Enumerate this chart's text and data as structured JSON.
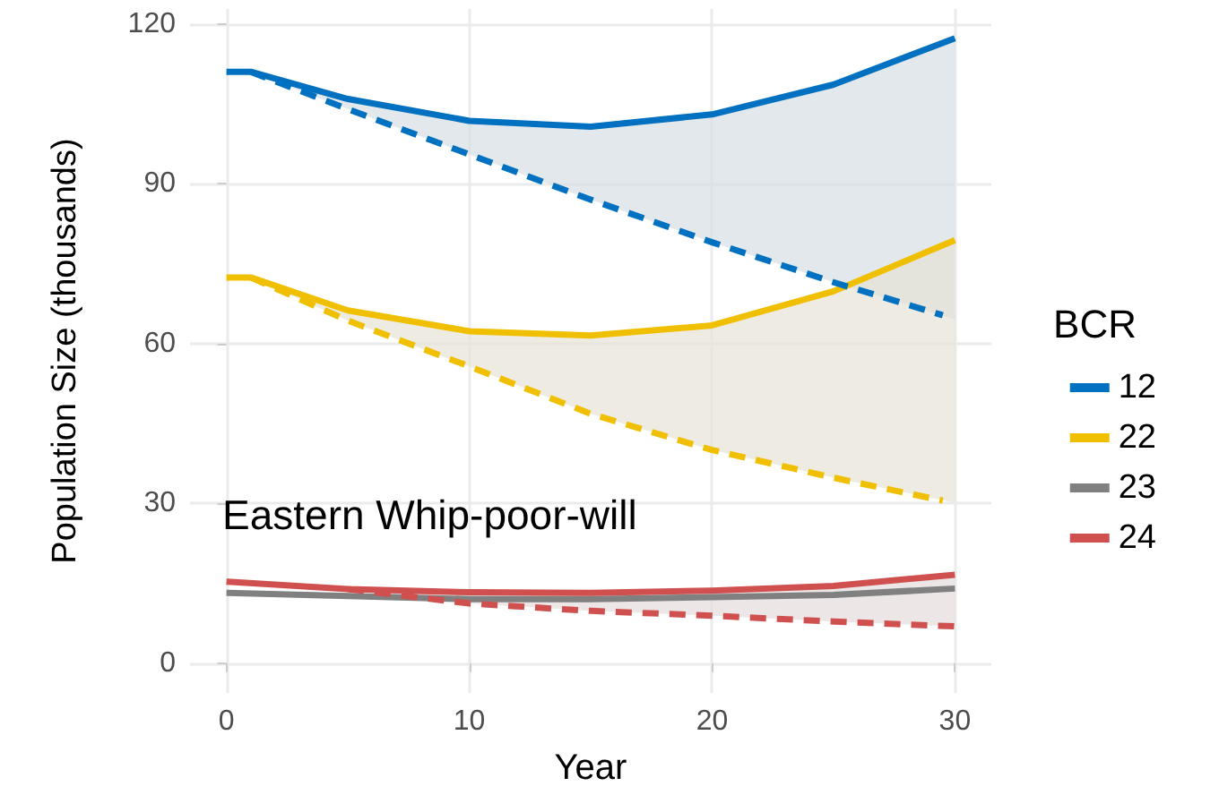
{
  "chart_data": {
    "type": "line",
    "xlabel": "Year",
    "ylabel": "Population Size (thousands)",
    "legend_title": "BCR",
    "annotations": [
      "Eastern Whip-poor-will"
    ],
    "xlim": [
      -1.5,
      31.5
    ],
    "xticks": [
      0,
      10,
      20,
      30
    ],
    "ylim": [
      -5.6,
      122.8
    ],
    "yticks": [
      0,
      30,
      60,
      90,
      120
    ],
    "grid": true,
    "legend": "right",
    "marker": "none",
    "series": [
      {
        "name": "12",
        "color": "#0070c0",
        "line_style": "solid",
        "x": [
          0,
          1,
          5,
          10,
          15,
          20,
          25,
          30
        ],
        "values": [
          111,
          111,
          105.9,
          101.8,
          100.7,
          103,
          108.6,
          117.3
        ],
        "lower": [
          null,
          111,
          104,
          95.5,
          87,
          79,
          71.5,
          64.5
        ],
        "upper": [
          null,
          111,
          105.9,
          101.8,
          100.7,
          103,
          108.6,
          117.3
        ]
      },
      {
        "name": "22",
        "color": "#f0c000",
        "line_style": "solid",
        "x": [
          0,
          1,
          5,
          10,
          15,
          20,
          25,
          30
        ],
        "values": [
          72.4,
          72.4,
          66.2,
          62.3,
          61.5,
          63.4,
          69.8,
          79.4
        ],
        "lower": [
          null,
          72.4,
          64.3,
          55.7,
          46.8,
          40,
          34.8,
          30.1
        ],
        "upper": [
          null,
          72.4,
          66.2,
          62.3,
          61.5,
          63.4,
          69.8,
          79.4
        ]
      },
      {
        "name": "23",
        "color": "#808080",
        "line_style": "solid",
        "x": [
          0,
          5,
          10,
          15,
          20,
          25,
          30
        ],
        "values": [
          13.2,
          12.6,
          12,
          12,
          12.4,
          12.8,
          14
        ]
      },
      {
        "name": "24",
        "color": "#d05050",
        "line_style": "solid",
        "x": [
          0,
          5,
          10,
          15,
          20,
          25,
          30
        ],
        "values": [
          15.3,
          13.9,
          13.3,
          13.2,
          13.6,
          14.5,
          16.6
        ],
        "lower": [
          null,
          13.9,
          11.2,
          9.8,
          8.9,
          7.8,
          6.9
        ],
        "upper": [
          null,
          13.9,
          13.3,
          13.2,
          13.6,
          14.5,
          16.6
        ]
      },
      {
        "color": "#0070c0",
        "line_style": "dashed",
        "x": [
          1,
          5,
          10,
          15,
          20,
          25,
          29.5
        ],
        "values": [
          111,
          104,
          95.5,
          87,
          79,
          71.5,
          65.3
        ]
      },
      {
        "color": "#f0c000",
        "line_style": "dashed",
        "x": [
          1,
          5,
          10,
          15,
          20,
          25,
          29.5
        ],
        "values": [
          72.4,
          64.3,
          55.7,
          46.8,
          40,
          34.8,
          30.5
        ]
      },
      {
        "color": "#d05050",
        "line_style": "dashed",
        "x": [
          5,
          10,
          15,
          20,
          25,
          30
        ],
        "values": [
          13.9,
          11.2,
          9.8,
          8.9,
          7.8,
          6.9
        ]
      }
    ]
  }
}
